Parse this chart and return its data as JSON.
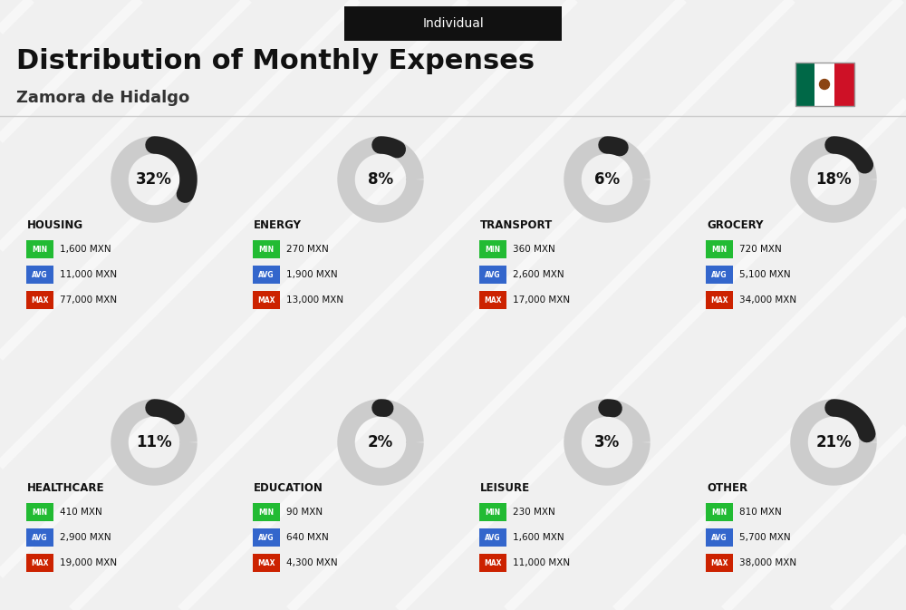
{
  "title": "Distribution of Monthly Expenses",
  "subtitle": "Zamora de Hidalgo",
  "tag": "Individual",
  "bg_color": "#f0f0f0",
  "categories": [
    {
      "name": "HOUSING",
      "pct": 32,
      "min": "1,600 MXN",
      "avg": "11,000 MXN",
      "max": "77,000 MXN",
      "col": 0,
      "row": 0
    },
    {
      "name": "ENERGY",
      "pct": 8,
      "min": "270 MXN",
      "avg": "1,900 MXN",
      "max": "13,000 MXN",
      "col": 1,
      "row": 0
    },
    {
      "name": "TRANSPORT",
      "pct": 6,
      "min": "360 MXN",
      "avg": "2,600 MXN",
      "max": "17,000 MXN",
      "col": 2,
      "row": 0
    },
    {
      "name": "GROCERY",
      "pct": 18,
      "min": "720 MXN",
      "avg": "5,100 MXN",
      "max": "34,000 MXN",
      "col": 3,
      "row": 0
    },
    {
      "name": "HEALTHCARE",
      "pct": 11,
      "min": "410 MXN",
      "avg": "2,900 MXN",
      "max": "19,000 MXN",
      "col": 0,
      "row": 1
    },
    {
      "name": "EDUCATION",
      "pct": 2,
      "min": "90 MXN",
      "avg": "640 MXN",
      "max": "4,300 MXN",
      "col": 1,
      "row": 1
    },
    {
      "name": "LEISURE",
      "pct": 3,
      "min": "230 MXN",
      "avg": "1,600 MXN",
      "max": "11,000 MXN",
      "col": 2,
      "row": 1
    },
    {
      "name": "OTHER",
      "pct": 21,
      "min": "810 MXN",
      "avg": "5,700 MXN",
      "max": "38,000 MXN",
      "col": 3,
      "row": 1
    }
  ],
  "min_color": "#22bb33",
  "avg_color": "#3366cc",
  "max_color": "#cc2200",
  "label_color": "#ffffff",
  "donut_color": "#222222",
  "donut_bg": "#cccccc",
  "text_color": "#111111"
}
